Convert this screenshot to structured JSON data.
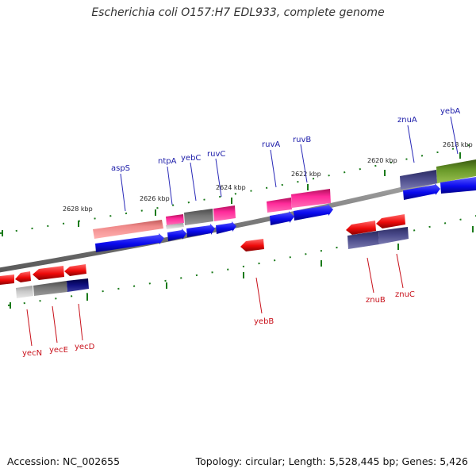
{
  "title": "Escherichia coli O157:H7 EDL933, complete genome",
  "footer": {
    "accession": "Accession: NC_002655",
    "summary": "Topology: circular; Length: 5,528,445 bp; Genes: 5,426"
  },
  "ticks": [
    "2628 kbp",
    "2626 kbp",
    "2624 kbp",
    "2622 kbp",
    "2620 kbp",
    "2618 kbp"
  ],
  "genes_top": [
    "aspS",
    "ntpA",
    "yebC",
    "ruvC",
    "ruvA",
    "ruvB",
    "znuA",
    "yebA"
  ],
  "genes_bottom": [
    "yecN",
    "yecE",
    "yecD",
    "yebB",
    "znuB",
    "znuC"
  ],
  "colors": {
    "forward_label": "#1a1aa8",
    "reverse_label": "#c8101a",
    "cds_forward": "#0a0aee",
    "cds_reverse": "#ee0a0a",
    "tick_green": "#1a7a1a",
    "backbone": "#8a8a8a"
  }
}
